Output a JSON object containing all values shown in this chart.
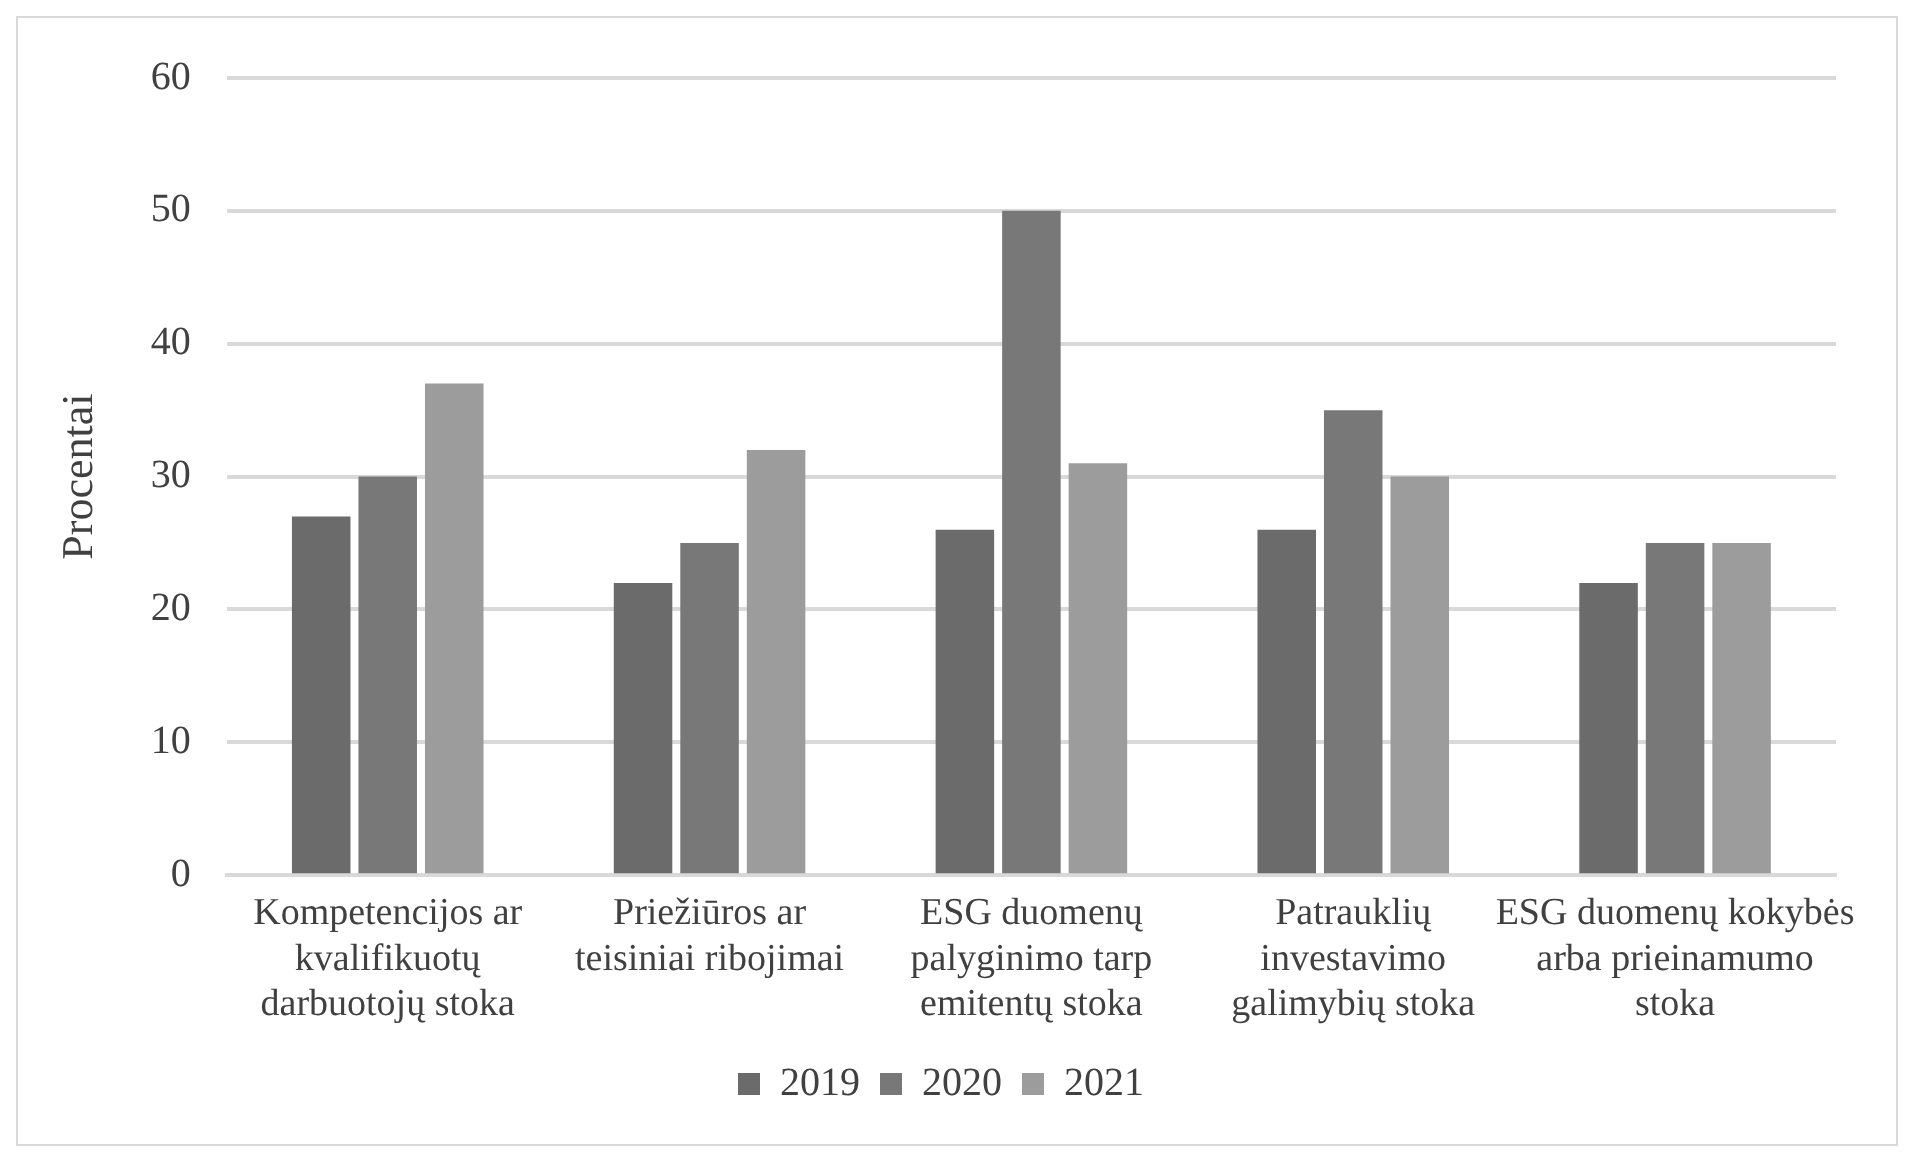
{
  "chart_data": {
    "type": "bar",
    "ylabel": "Procentai",
    "categories": [
      "Kompetencijos ar kvalifikuotų darbuotojų stoka",
      "Priežiūros ar teisiniai ribojimai",
      "ESG duomenų palyginimo tarp emitentų stoka",
      "Patrauklių investavimo galimybių stoka",
      "ESG duomenų kokybės arba prieinamumo stoka"
    ],
    "series": [
      {
        "name": "2019",
        "color": "#6b6b6b",
        "values": [
          27,
          22,
          26,
          26,
          22
        ]
      },
      {
        "name": "2020",
        "color": "#787878",
        "values": [
          30,
          25,
          50,
          35,
          25
        ]
      },
      {
        "name": "2021",
        "color": "#9c9c9c",
        "values": [
          37,
          32,
          31,
          30,
          25
        ]
      }
    ],
    "ylim": [
      0,
      60
    ],
    "yticks": [
      0,
      10,
      20,
      30,
      40,
      50,
      60
    ],
    "grid": "y",
    "legend": "bottom"
  }
}
